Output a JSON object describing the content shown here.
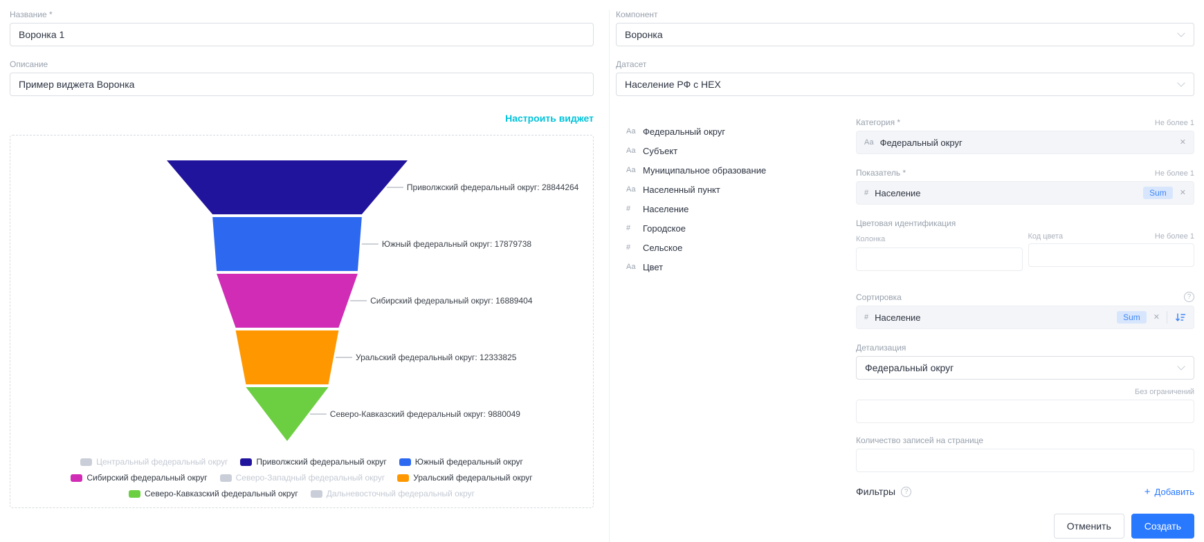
{
  "colors": {
    "accent_link": "#00c3da",
    "primary_blue": "#2979ff",
    "sum_badge_bg": "#d8e6fd",
    "sum_badge_text": "#3f87f5",
    "inactive_gray": "#c9ced8"
  },
  "form": {
    "name": {
      "label": "Название *",
      "value": "Воронка 1"
    },
    "description": {
      "label": "Описание",
      "value": "Пример виджета Воронка"
    },
    "configure_link": "Настроить виджет"
  },
  "chart_data": {
    "type": "funnel",
    "title": "",
    "label_format": "{name}: {value}",
    "segments": [
      {
        "label": "Приволжский федеральный округ",
        "value": 28844264,
        "color": "#21149c"
      },
      {
        "label": "Южный федеральный округ",
        "value": 17879738,
        "color": "#2d68f0"
      },
      {
        "label": "Сибирский федеральный округ",
        "value": 16889404,
        "color": "#d02cb5"
      },
      {
        "label": "Уральский федеральный округ",
        "value": 12333825,
        "color": "#ff9800"
      },
      {
        "label": "Северо-Кавказский федеральный округ",
        "value": 9880049,
        "color": "#6ccf41"
      }
    ],
    "legend": [
      {
        "label": "Центральный федеральный округ",
        "color": "#c9ced8",
        "active": false
      },
      {
        "label": "Приволжский федеральный округ",
        "color": "#21149c",
        "active": true
      },
      {
        "label": "Южный федеральный округ",
        "color": "#2d68f0",
        "active": true
      },
      {
        "label": "Сибирский федеральный округ",
        "color": "#d02cb5",
        "active": true
      },
      {
        "label": "Северо-Западный федеральный округ",
        "color": "#c9ced8",
        "active": false
      },
      {
        "label": "Уральский федеральный округ",
        "color": "#ff9800",
        "active": true
      },
      {
        "label": "Северо-Кавказский федеральный округ",
        "color": "#6ccf41",
        "active": true
      },
      {
        "label": "Дальневосточный федеральный округ",
        "color": "#c9ced8",
        "active": false
      }
    ]
  },
  "settings": {
    "component": {
      "label": "Компонент",
      "value": "Воронка"
    },
    "dataset": {
      "label": "Датасет",
      "value": "Население РФ с HEX"
    },
    "fields": [
      {
        "type": "Аа",
        "name": "Федеральный округ"
      },
      {
        "type": "Аа",
        "name": "Субъект"
      },
      {
        "type": "Аа",
        "name": "Муниципальное образование"
      },
      {
        "type": "Аа",
        "name": "Населенный пункт"
      },
      {
        "type": "#",
        "name": "Население"
      },
      {
        "type": "#",
        "name": "Городское"
      },
      {
        "type": "#",
        "name": "Сельское"
      },
      {
        "type": "Аа",
        "name": "Цвет"
      }
    ],
    "category": {
      "label": "Категория *",
      "hint": "Не более 1",
      "chip_type": "Аа",
      "chip_name": "Федеральный округ"
    },
    "measure": {
      "label": "Показатель *",
      "hint": "Не более 1",
      "chip_type": "#",
      "chip_name": "Население",
      "aggregation": "Sum"
    },
    "color_identification": {
      "label": "Цветовая идентификация",
      "column_label": "Колонка",
      "code_label": "Код цвета",
      "hint": "Не более 1"
    },
    "sorting": {
      "label": "Сортировка",
      "chip_type": "#",
      "chip_name": "Население",
      "aggregation": "Sum"
    },
    "detailing": {
      "label": "Детализация",
      "value": "Федеральный округ"
    },
    "row_limit": {
      "hint": "Без ограничений"
    },
    "page_size": {
      "label": "Количество записей на странице"
    },
    "filters": {
      "label": "Фильтры",
      "add_label": "Добавить"
    }
  },
  "actions": {
    "cancel": "Отменить",
    "create": "Создать"
  }
}
